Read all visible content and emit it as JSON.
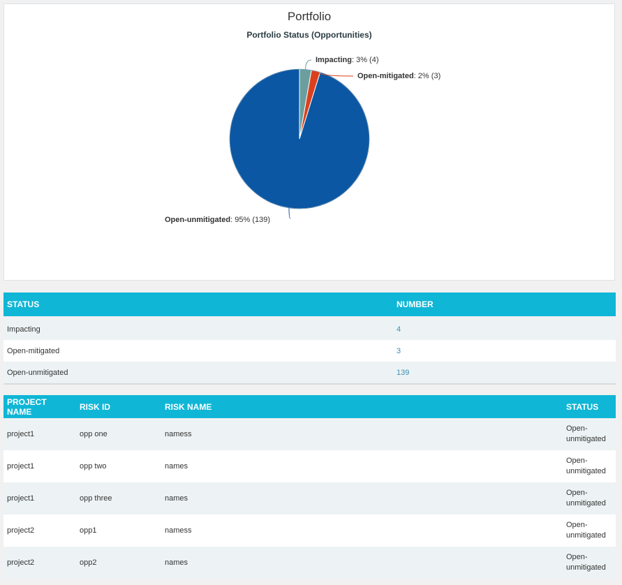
{
  "chart_data": {
    "type": "pie",
    "title": "Portfolio",
    "subtitle": "Portfolio Status (Opportunities)",
    "slices": [
      {
        "name": "Impacting",
        "percent": "3%",
        "count": 4,
        "color": "#6a9e9f"
      },
      {
        "name": "Open-mitigated",
        "percent": "2%",
        "count": 3,
        "color": "#d9411e"
      },
      {
        "name": "Open-unmitigated",
        "percent": "95%",
        "count": 139,
        "color": "#0b57a3"
      }
    ]
  },
  "status_table": {
    "headers": {
      "status": "STATUS",
      "number": "NUMBER"
    },
    "rows": [
      {
        "status": "Impacting",
        "number": "4"
      },
      {
        "status": "Open-mitigated",
        "number": "3"
      },
      {
        "status": "Open-unmitigated",
        "number": "139"
      }
    ]
  },
  "risk_table": {
    "headers": {
      "project_name": "PROJECT NAME",
      "risk_id": "RISK ID",
      "risk_name": "RISK NAME",
      "status": "STATUS"
    },
    "rows": [
      {
        "project_name": "project1",
        "risk_id": "opp one",
        "risk_name": "namess",
        "status_1": "Open-",
        "status_2": "unmitigated"
      },
      {
        "project_name": "project1",
        "risk_id": "opp two",
        "risk_name": "names",
        "status_1": "Open-",
        "status_2": "unmitigated"
      },
      {
        "project_name": "project1",
        "risk_id": "opp three",
        "risk_name": "names",
        "status_1": "Open-",
        "status_2": "unmitigated"
      },
      {
        "project_name": "project2",
        "risk_id": "opp1",
        "risk_name": "namess",
        "status_1": "Open-",
        "status_2": "unmitigated"
      },
      {
        "project_name": "project2",
        "risk_id": "opp2",
        "risk_name": "names",
        "status_1": "Open-",
        "status_2": "unmitigated"
      }
    ]
  }
}
